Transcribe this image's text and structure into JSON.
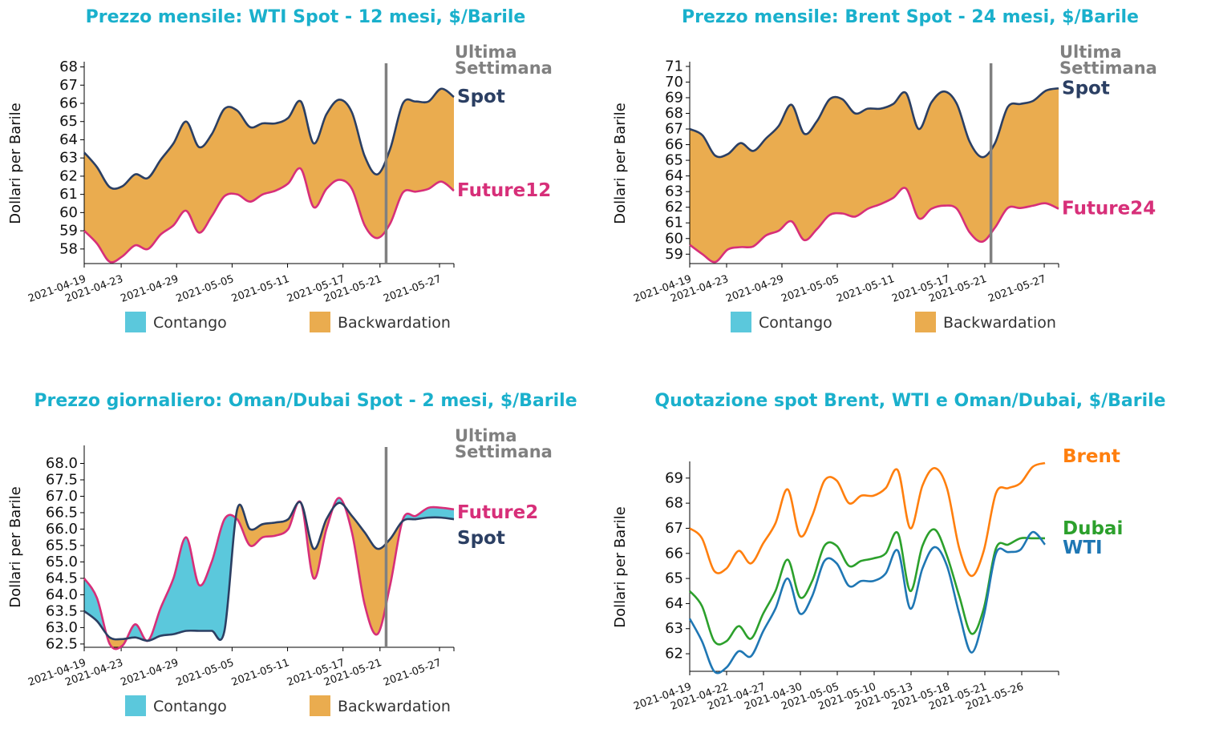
{
  "colors": {
    "title": "#1ab0cc",
    "spot": "#2b3f63",
    "future": "#d72f79",
    "contango": "#5bc8dc",
    "backwardation": "#eaac4f",
    "vline": "#808080",
    "brent": "#ff7f0e",
    "dubai": "#2ca02c",
    "wti": "#1f77b4"
  },
  "chart_data": [
    {
      "type": "area",
      "title": "Prezzo mensile: WTI Spot - 12 mesi, $/Barile",
      "ylabel": "Dollari per Barile",
      "ylim": [
        57.2,
        68.2
      ],
      "yticks": [
        "58",
        "59",
        "60",
        "61",
        "62",
        "63",
        "64",
        "65",
        "66",
        "67",
        "68"
      ],
      "xticks": [
        "2021-04-19",
        "2021-04-23",
        "2021-04-29",
        "2021-05-05",
        "2021-05-11",
        "2021-05-17",
        "2021-05-21",
        "2021-05-27"
      ],
      "annotation": [
        "Ultima",
        "Settimana"
      ],
      "legend": [
        "Contango",
        "Backwardation"
      ],
      "series": [
        {
          "name": "Spot",
          "values": [
            63.3,
            62.5,
            61.4,
            61.45,
            62.1,
            61.9,
            62.9,
            63.8,
            65.0,
            63.6,
            64.3,
            65.7,
            65.6,
            64.7,
            64.9,
            64.9,
            65.2,
            66.1,
            63.8,
            65.4,
            66.2,
            65.5,
            63.1,
            62.1,
            63.5,
            66.0,
            66.1,
            66.1,
            66.8,
            66.35
          ]
        },
        {
          "name": "Future12",
          "values": [
            59.0,
            58.3,
            57.3,
            57.6,
            58.2,
            58.0,
            58.8,
            59.3,
            60.1,
            58.9,
            59.8,
            60.9,
            61.0,
            60.6,
            61.0,
            61.2,
            61.6,
            62.4,
            60.3,
            61.3,
            61.8,
            61.3,
            59.3,
            58.6,
            59.4,
            61.1,
            61.15,
            61.3,
            61.7,
            61.2
          ]
        }
      ]
    },
    {
      "type": "area",
      "title": "Prezzo mensile: Brent Spot - 24 mesi, $/Barile",
      "ylabel": "Dollari per Barile",
      "ylim": [
        58.4,
        71.2
      ],
      "yticks": [
        "59",
        "60",
        "61",
        "62",
        "63",
        "64",
        "65",
        "66",
        "67",
        "68",
        "69",
        "70",
        "71"
      ],
      "xticks": [
        "2021-04-19",
        "2021-04-23",
        "2021-04-29",
        "2021-05-05",
        "2021-05-11",
        "2021-05-17",
        "2021-05-21",
        "2021-05-27"
      ],
      "annotation": [
        "Ultima",
        "Settimana"
      ],
      "legend": [
        "Contango",
        "Backwardation"
      ],
      "series": [
        {
          "name": "Spot",
          "values": [
            67.0,
            66.6,
            65.3,
            65.4,
            66.1,
            65.6,
            66.4,
            67.2,
            68.55,
            66.7,
            67.5,
            68.9,
            68.9,
            68.0,
            68.3,
            68.3,
            68.6,
            69.3,
            67.0,
            68.7,
            69.4,
            68.6,
            66.2,
            65.2,
            66.1,
            68.4,
            68.6,
            68.8,
            69.45,
            69.6
          ]
        },
        {
          "name": "Future24",
          "values": [
            59.6,
            59.0,
            58.5,
            59.3,
            59.45,
            59.5,
            60.2,
            60.5,
            61.1,
            59.9,
            60.6,
            61.5,
            61.6,
            61.4,
            61.9,
            62.2,
            62.6,
            63.2,
            61.3,
            61.9,
            62.1,
            61.9,
            60.4,
            59.8,
            60.7,
            61.95,
            61.95,
            62.1,
            62.25,
            61.9
          ]
        }
      ]
    },
    {
      "type": "area",
      "title": "Prezzo giornaliero: Oman/Dubai Spot - 2 mesi, $/Barile",
      "ylabel": "Dollari per Barile",
      "ylim": [
        62.4,
        68.5
      ],
      "yticks": [
        "62.5",
        "63.0",
        "63.5",
        "64.0",
        "64.5",
        "65.0",
        "65.5",
        "66.0",
        "66.5",
        "67.0",
        "67.5",
        "68.0"
      ],
      "xticks": [
        "2021-04-19",
        "2021-04-23",
        "2021-04-29",
        "2021-05-05",
        "2021-05-11",
        "2021-05-17",
        "2021-05-21",
        "2021-05-27"
      ],
      "annotation": [
        "Ultima",
        "Settimana"
      ],
      "legend": [
        "Contango",
        "Backwardation"
      ],
      "series": [
        {
          "name": "Future2",
          "values": [
            64.5,
            63.9,
            62.5,
            62.45,
            63.1,
            62.6,
            63.6,
            64.5,
            65.75,
            64.3,
            65.0,
            66.3,
            66.3,
            65.5,
            65.75,
            65.8,
            66.0,
            66.8,
            64.5,
            66.0,
            66.95,
            65.9,
            63.7,
            62.8,
            64.3,
            66.3,
            66.4,
            66.65,
            66.65,
            66.6
          ]
        },
        {
          "name": "Spot",
          "values": [
            63.5,
            63.2,
            62.7,
            62.65,
            62.7,
            62.6,
            62.75,
            62.8,
            62.9,
            62.9,
            62.9,
            62.9,
            66.6,
            66.0,
            66.15,
            66.2,
            66.3,
            66.8,
            65.4,
            66.3,
            66.8,
            66.4,
            65.9,
            65.4,
            65.7,
            66.25,
            66.3,
            66.35,
            66.35,
            66.3
          ]
        }
      ]
    },
    {
      "type": "line",
      "title": "Quotazione spot Brent, WTI e Oman/Dubai, $/Barile",
      "ylabel": "Dollari per Barile",
      "ylim": [
        61.3,
        69.6
      ],
      "yticks": [
        "62",
        "63",
        "64",
        "65",
        "66",
        "67",
        "68",
        "69"
      ],
      "xticks": [
        "2021-04-19",
        "2021-04-22",
        "2021-04-27",
        "2021-04-30",
        "2021-05-05",
        "2021-05-10",
        "2021-05-13",
        "2021-05-18",
        "2021-05-21",
        "2021-05-26"
      ],
      "series": [
        {
          "name": "Brent",
          "values": [
            67.0,
            66.6,
            65.3,
            65.4,
            66.1,
            65.6,
            66.4,
            67.2,
            68.55,
            66.7,
            67.5,
            68.9,
            68.9,
            68.0,
            68.3,
            68.3,
            68.6,
            69.3,
            67.0,
            68.7,
            69.4,
            68.6,
            66.2,
            65.1,
            66.1,
            68.4,
            68.6,
            68.8,
            69.45,
            69.6
          ]
        },
        {
          "name": "Dubai",
          "values": [
            64.5,
            63.9,
            62.5,
            62.5,
            63.1,
            62.6,
            63.6,
            64.5,
            65.75,
            64.25,
            64.9,
            66.3,
            66.3,
            65.5,
            65.7,
            65.8,
            66.0,
            66.8,
            64.5,
            66.3,
            66.95,
            65.9,
            64.3,
            62.8,
            63.8,
            66.2,
            66.35,
            66.6,
            66.6,
            66.6
          ]
        },
        {
          "name": "WTI",
          "values": [
            63.4,
            62.5,
            61.3,
            61.45,
            62.1,
            61.9,
            62.9,
            63.8,
            65.0,
            63.6,
            64.3,
            65.7,
            65.6,
            64.7,
            64.9,
            64.9,
            65.2,
            66.1,
            63.8,
            65.4,
            66.25,
            65.5,
            63.6,
            62.05,
            63.5,
            66.0,
            66.05,
            66.15,
            66.85,
            66.35
          ]
        }
      ]
    }
  ]
}
